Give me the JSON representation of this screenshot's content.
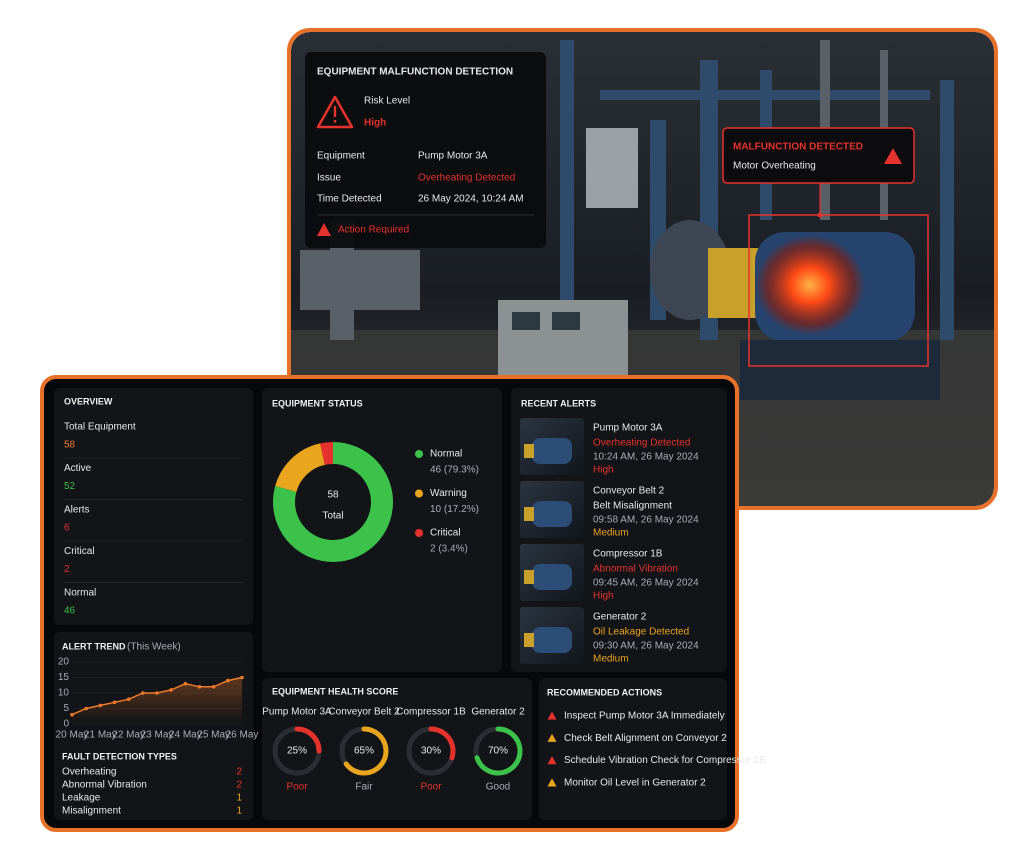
{
  "malfunction_panel": {
    "title": "EQUIPMENT MALFUNCTION DETECTION",
    "risk_label": "Risk Level",
    "risk_value": "High",
    "rows": [
      {
        "label": "Equipment",
        "value": "Pump Motor 3A"
      },
      {
        "label": "Issue",
        "value": "Overheating Detected"
      },
      {
        "label": "Time Detected",
        "value": "26 May 2024, 10:24 AM"
      }
    ],
    "action": "Action Required"
  },
  "callout": {
    "title": "MALFUNCTION DETECTED",
    "subtitle": "Motor Overheating"
  },
  "overview": {
    "title": "OVERVIEW",
    "items": [
      {
        "label": "Total Equipment",
        "value": 58,
        "color": "#f07a2a"
      },
      {
        "label": "Active",
        "value": 52,
        "color": "#3cc24a"
      },
      {
        "label": "Alerts",
        "value": 6,
        "color": "#e5322d"
      },
      {
        "label": "Critical",
        "value": 2,
        "color": "#e5322d"
      },
      {
        "label": "Normal",
        "value": 46,
        "color": "#3cc24a"
      }
    ]
  },
  "chart_data": [
    {
      "type": "donut",
      "title": "EQUIPMENT STATUS",
      "center_value": 58,
      "center_label": "Total",
      "categories": [
        "Normal",
        "Warning",
        "Critical"
      ],
      "values": [
        46,
        10,
        2
      ],
      "value_labels": [
        "46 (79.3%)",
        "10 (17.2%)",
        "2 (3.4%)"
      ],
      "colors": [
        "#3cc24a",
        "#eaa51f",
        "#e5322d"
      ]
    },
    {
      "type": "line",
      "title": "ALERT TREND",
      "subtitle": "(This Week)",
      "categories": [
        "20 May",
        null,
        "21 May",
        null,
        "22 May",
        null,
        "23 May",
        null,
        "24 May",
        null,
        "25 May",
        null,
        "26 May"
      ],
      "values": [
        3,
        5,
        6,
        7,
        8,
        10,
        10,
        11,
        13,
        12,
        12,
        14,
        15
      ],
      "ylim": [
        0,
        20
      ],
      "yticks": [
        0,
        5,
        10,
        15,
        20
      ],
      "color": "#f07a2a"
    }
  ],
  "fault_types": {
    "title": "FAULT DETECTION TYPES",
    "items": [
      {
        "name": "Overheating",
        "count": 2,
        "color": "#e5322d"
      },
      {
        "name": "Abnormal Vibration",
        "count": 2,
        "color": "#e5322d"
      },
      {
        "name": "Leakage",
        "count": 1,
        "color": "#eaa51f"
      },
      {
        "name": "Misalignment",
        "count": 1,
        "color": "#eaa51f"
      }
    ]
  },
  "recent_alerts": {
    "title": "RECENT ALERTS",
    "items": [
      {
        "name": "Pump Motor 3A",
        "issue": "Overheating Detected",
        "time": "10:24 AM, 26 May 2024",
        "severity": "High",
        "issue_color": "#e5322d",
        "severity_color": "#e5322d"
      },
      {
        "name": "Conveyor Belt 2",
        "issue": "Belt Misalignment",
        "time": "09:58 AM, 26 May 2024",
        "severity": "Medium",
        "issue_color": "#e6e6e6",
        "severity_color": "#eaa51f"
      },
      {
        "name": "Compressor 1B",
        "issue": "Abnormal Vibration",
        "time": "09:45 AM, 26 May 2024",
        "severity": "High",
        "issue_color": "#e5322d",
        "severity_color": "#e5322d"
      },
      {
        "name": "Generator 2",
        "issue": "Oil Leakage Detected",
        "time": "09:30 AM, 26 May 2024",
        "severity": "Medium",
        "issue_color": "#eaa51f",
        "severity_color": "#eaa51f"
      }
    ]
  },
  "health_score": {
    "title": "EQUIPMENT HEALTH SCORE",
    "items": [
      {
        "name": "Pump Motor 3A",
        "score": 25,
        "score_label": "25%",
        "rating": "Poor",
        "color": "#e5322d"
      },
      {
        "name": "Conveyor Belt 2",
        "score": 65,
        "score_label": "65%",
        "rating": "Fair",
        "color": "#eaa51f"
      },
      {
        "name": "Compressor 1B",
        "score": 30,
        "score_label": "30%",
        "rating": "Poor",
        "color": "#e5322d"
      },
      {
        "name": "Generator 2",
        "score": 70,
        "score_label": "70%",
        "rating": "Good",
        "color": "#3cc24a"
      }
    ]
  },
  "recommended_actions": {
    "title": "RECOMMENDED ACTIONS",
    "items": [
      {
        "text": "Inspect Pump Motor 3A Immediately",
        "icon_color": "#e5322d"
      },
      {
        "text": "Check Belt Alignment on Conveyor 2",
        "icon_color": "#eaa51f"
      },
      {
        "text": "Schedule Vibration Check for Compressor 1B",
        "icon_color": "#e5322d"
      },
      {
        "text": "Monitor Oil Level in Generator 2",
        "icon_color": "#eaa51f"
      }
    ]
  }
}
